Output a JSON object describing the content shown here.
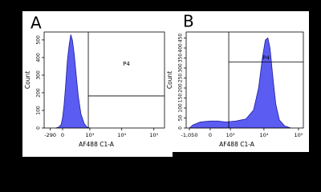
{
  "chart_data": [
    {
      "type": "area",
      "title": "A",
      "xlabel": "AF488 C1-A",
      "ylabel": "Count",
      "color": "#5b5cf2",
      "edge_color": "#1c1c9c",
      "x": [
        -150,
        -80,
        -30,
        0,
        30,
        60,
        100,
        140,
        180,
        220,
        270,
        330,
        400,
        500,
        650,
        800,
        1000
      ],
      "values": [
        0,
        5,
        20,
        60,
        130,
        230,
        380,
        470,
        530,
        500,
        420,
        300,
        180,
        80,
        25,
        5,
        0
      ],
      "xlim": [
        -505,
        214000
      ],
      "ylim": [
        0,
        545
      ],
      "xticks": [
        {
          "value": -290,
          "label": "-290"
        },
        0,
        {
          "value": 1000,
          "label": "10³"
        },
        {
          "value": 10000,
          "label": "10⁴"
        },
        {
          "value": 100000,
          "label": "10⁵"
        }
      ],
      "yticks": [
        0,
        100,
        200,
        300,
        400,
        500
      ],
      "gate": {
        "label": "P4",
        "x": 890,
        "y": 182
      }
    },
    {
      "type": "area",
      "title": "B",
      "xlabel": "AF488 C1-A",
      "ylabel": "Count",
      "color": "#5b5cf2",
      "edge_color": "#1c1c9c",
      "x": [
        -1050,
        -800,
        -400,
        0,
        300,
        700,
        1500,
        3000,
        5000,
        7000,
        9000,
        11000,
        13000,
        15000,
        18000,
        22000,
        28000,
        40000,
        60000
      ],
      "values": [
        0,
        15,
        30,
        35,
        35,
        30,
        35,
        45,
        90,
        200,
        350,
        440,
        450,
        400,
        260,
        120,
        40,
        10,
        0
      ],
      "xlim": [
        -1330,
        138000
      ],
      "ylim": [
        0,
        480
      ],
      "xticks": [
        {
          "value": -1050,
          "label": "-1,050"
        },
        0,
        {
          "value": 1000,
          "label": "10³"
        },
        {
          "value": 10000,
          "label": "10⁴"
        },
        {
          "value": 100000,
          "label": "10⁵"
        }
      ],
      "yticks": [
        0,
        50,
        100,
        150,
        200,
        250,
        300,
        350,
        400,
        450
      ],
      "gate": {
        "label": "P4",
        "x": 880,
        "y": 330
      }
    }
  ]
}
